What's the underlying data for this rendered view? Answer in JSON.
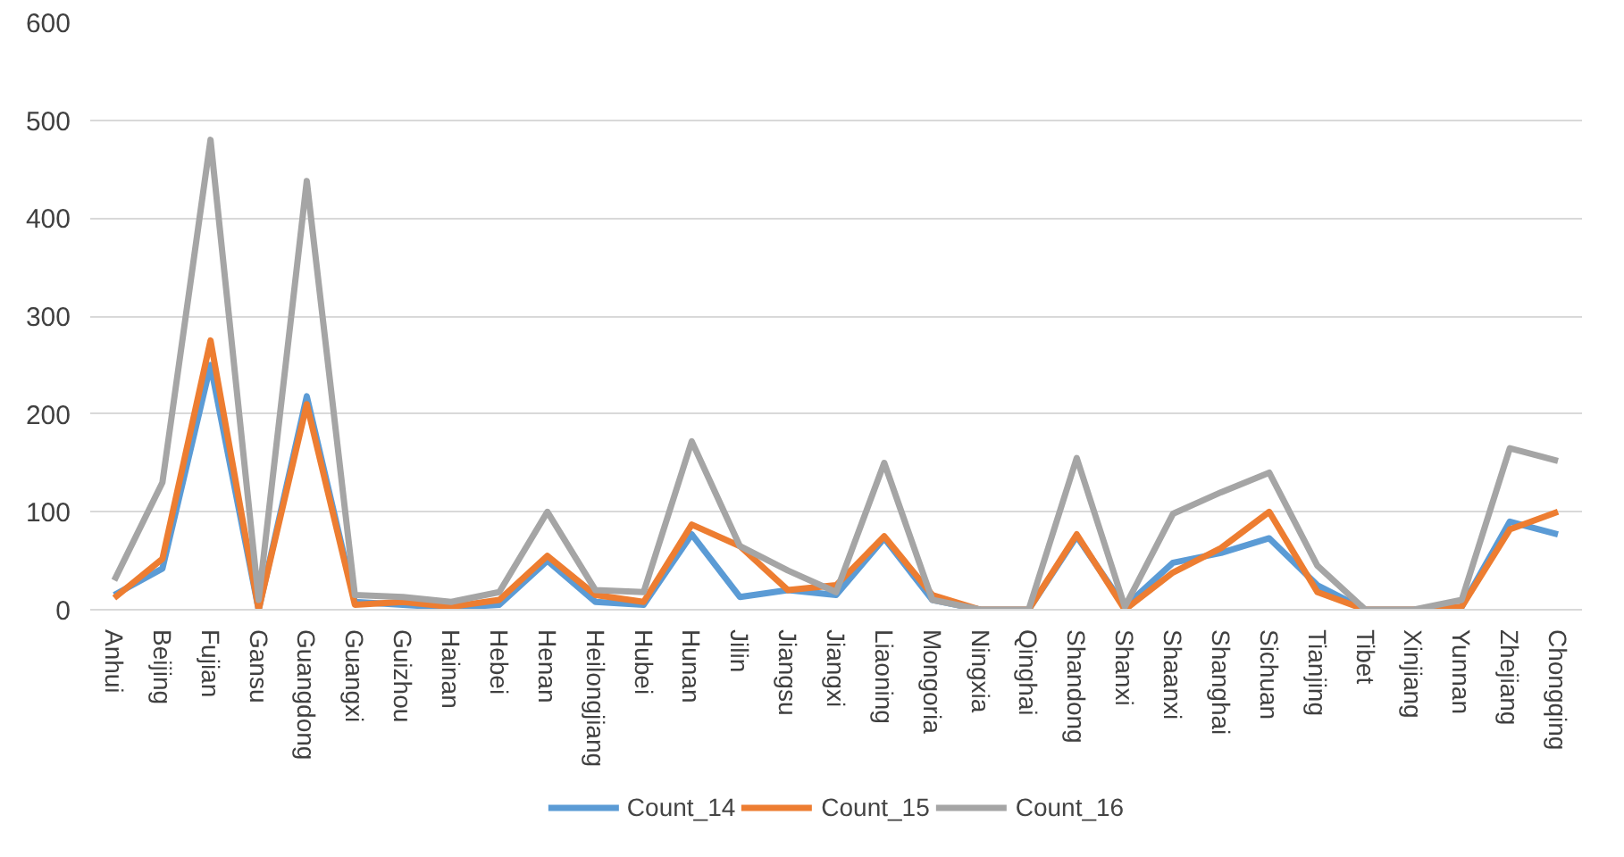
{
  "chart_data": {
    "type": "line",
    "categories": [
      "Anhui",
      "Beijing",
      "Fujian",
      "Gansu",
      "Guangdong",
      "Guangxi",
      "Guizhou",
      "Hainan",
      "Hebei",
      "Henan",
      "Heilongjiang",
      "Hubei",
      "Hunan",
      "Jilin",
      "Jiangsu",
      "Jiangxi",
      "Liaoning",
      "Mongoria",
      "Ningxia",
      "Qinghai",
      "Shandong",
      "Shanxi",
      "Shaanxi",
      "Shanghai",
      "Sichuan",
      "Tianjing",
      "Tibet",
      "Xinjiang",
      "Yunnan",
      "Zhejiang",
      "Chongqing"
    ],
    "series": [
      {
        "name": "Count_14",
        "color": "#5b9bd5",
        "values": [
          15,
          42,
          250,
          0,
          218,
          8,
          5,
          2,
          5,
          50,
          8,
          5,
          77,
          13,
          20,
          15,
          73,
          10,
          0,
          0,
          75,
          3,
          48,
          58,
          73,
          25,
          0,
          0,
          3,
          90,
          77
        ]
      },
      {
        "name": "Count_15",
        "color": "#ed7d31",
        "values": [
          12,
          52,
          275,
          0,
          210,
          5,
          8,
          3,
          10,
          55,
          15,
          8,
          87,
          65,
          20,
          25,
          75,
          15,
          0,
          0,
          77,
          0,
          38,
          63,
          100,
          18,
          0,
          0,
          3,
          82,
          100
        ]
      },
      {
        "name": "Count_16",
        "color": "#a5a5a5",
        "values": [
          30,
          130,
          480,
          10,
          438,
          15,
          13,
          8,
          18,
          100,
          20,
          18,
          172,
          65,
          40,
          18,
          150,
          10,
          0,
          0,
          155,
          3,
          98,
          120,
          140,
          45,
          0,
          0,
          10,
          165,
          152
        ]
      }
    ],
    "ylim": [
      0,
      600
    ],
    "yticks": [
      0,
      100,
      200,
      300,
      400,
      500,
      600
    ],
    "grid": "y",
    "legend": "bottom",
    "marker": "none",
    "line_style": "solid"
  }
}
